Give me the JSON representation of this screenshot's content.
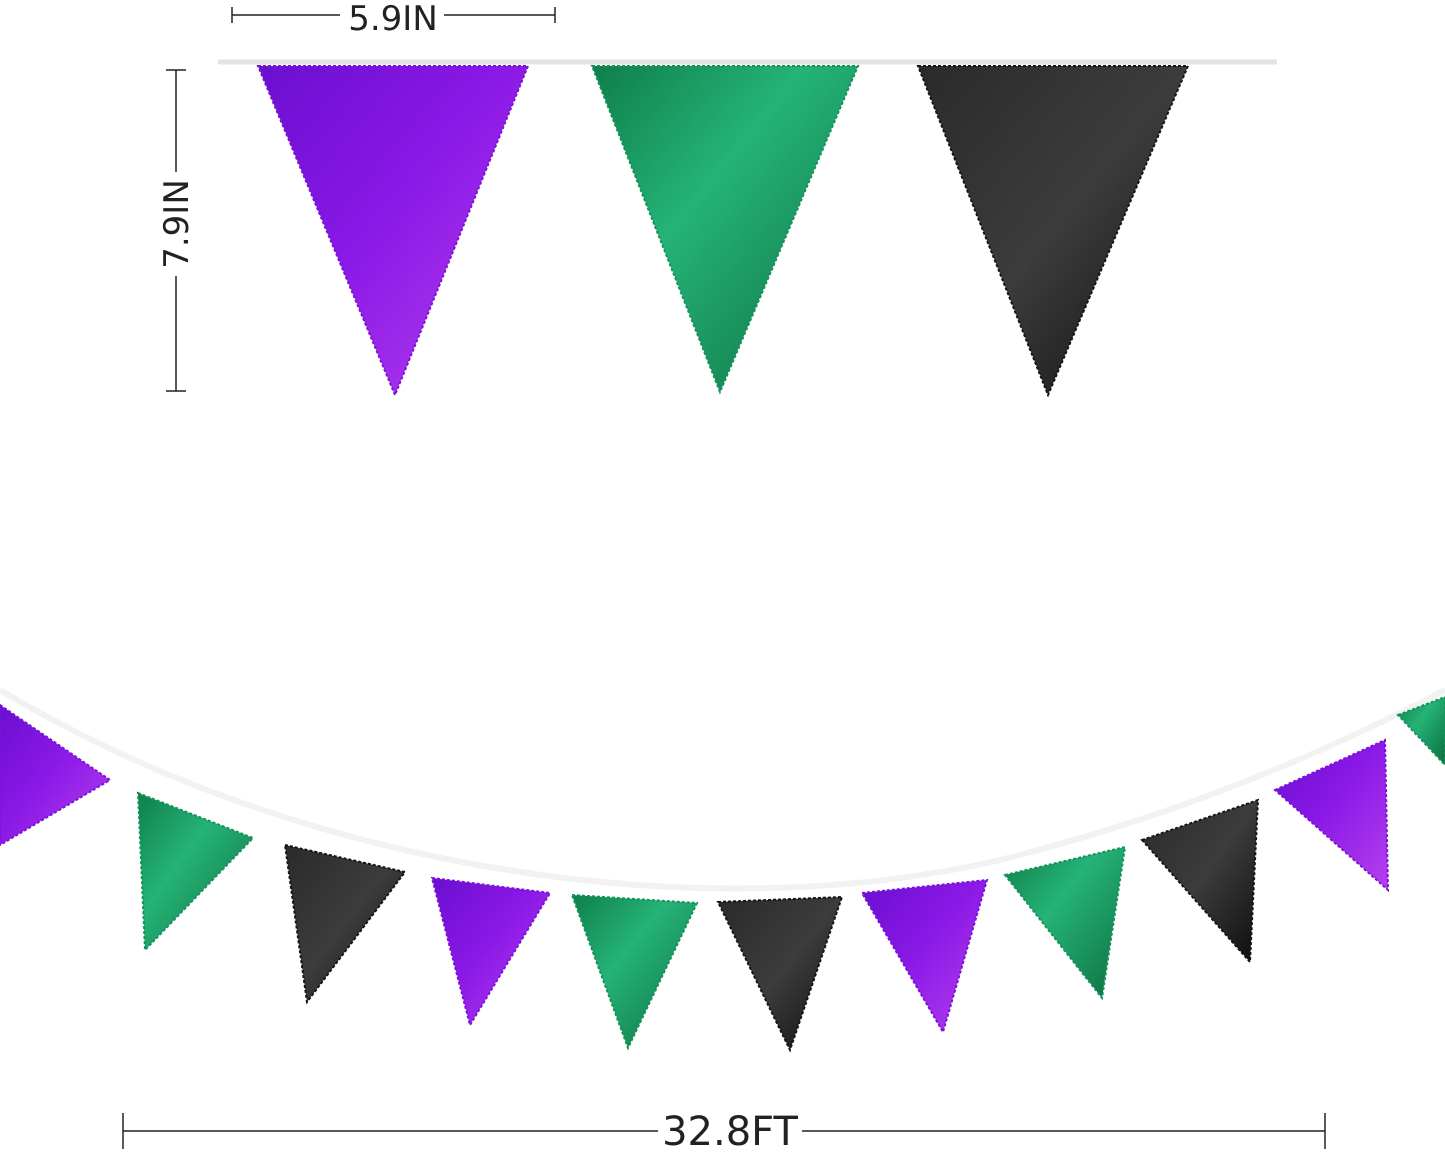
{
  "dimensions": {
    "pennant_width": "5.9IN",
    "pennant_height": "7.9IN",
    "total_length": "32.8FT"
  },
  "colors": {
    "purple": "#7b12d9",
    "purple_light": "#b23cf0",
    "green": "#15935a",
    "green_light": "#2fbf7c",
    "black": "#151515",
    "black_light": "#3a3a3a",
    "string": "#e6e6e6"
  },
  "top_pennants": [
    "purple",
    "green",
    "black"
  ],
  "garland_pennants": [
    "purple",
    "green",
    "black",
    "purple",
    "green",
    "black",
    "purple",
    "green",
    "black",
    "purple",
    "green"
  ]
}
